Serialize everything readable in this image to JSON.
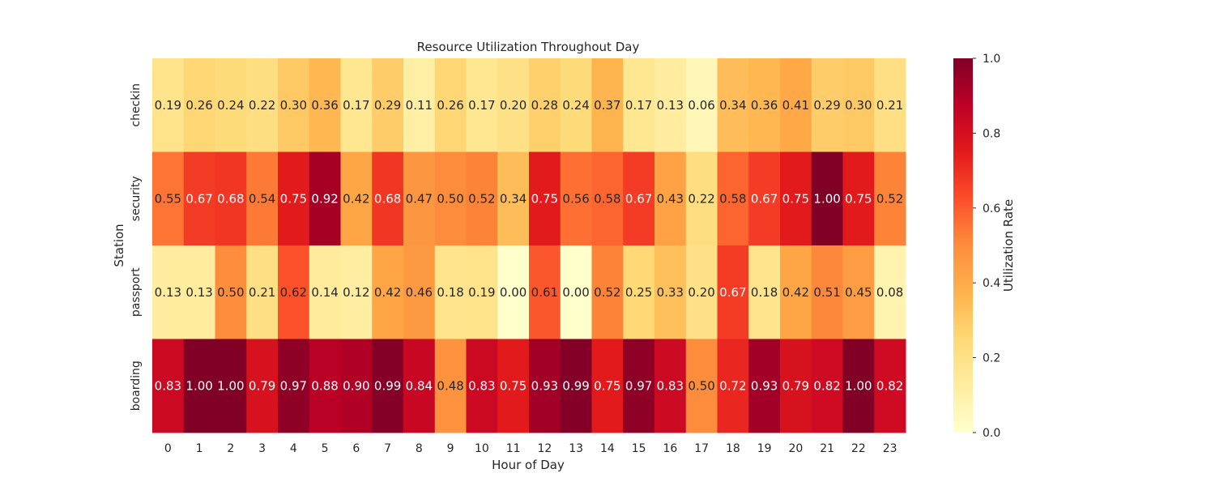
{
  "chart_data": {
    "type": "heatmap",
    "title": "Resource Utilization Throughout Day",
    "xlabel": "Hour of Day",
    "ylabel": "Station",
    "x": [
      "0",
      "1",
      "2",
      "3",
      "4",
      "5",
      "6",
      "7",
      "8",
      "9",
      "10",
      "11",
      "12",
      "13",
      "14",
      "15",
      "16",
      "17",
      "18",
      "19",
      "20",
      "21",
      "22",
      "23"
    ],
    "y": [
      "checkin",
      "security",
      "passport",
      "boarding"
    ],
    "values": [
      [
        0.19,
        0.26,
        0.24,
        0.22,
        0.3,
        0.36,
        0.17,
        0.29,
        0.11,
        0.26,
        0.17,
        0.2,
        0.28,
        0.24,
        0.37,
        0.17,
        0.13,
        0.06,
        0.34,
        0.36,
        0.41,
        0.29,
        0.3,
        0.21
      ],
      [
        0.55,
        0.67,
        0.68,
        0.54,
        0.75,
        0.92,
        0.42,
        0.68,
        0.47,
        0.5,
        0.52,
        0.34,
        0.75,
        0.56,
        0.58,
        0.67,
        0.43,
        0.22,
        0.58,
        0.67,
        0.75,
        1.0,
        0.75,
        0.52
      ],
      [
        0.13,
        0.13,
        0.5,
        0.21,
        0.62,
        0.14,
        0.12,
        0.42,
        0.46,
        0.18,
        0.19,
        0.0,
        0.61,
        0.0,
        0.52,
        0.25,
        0.33,
        0.2,
        0.67,
        0.18,
        0.42,
        0.51,
        0.45,
        0.08
      ],
      [
        0.83,
        1.0,
        1.0,
        0.79,
        0.97,
        0.88,
        0.9,
        0.99,
        0.84,
        0.48,
        0.83,
        0.75,
        0.93,
        0.99,
        0.75,
        0.97,
        0.83,
        0.5,
        0.72,
        0.93,
        0.79,
        0.82,
        1.0,
        0.82
      ]
    ],
    "colormap": "YlOrRd",
    "colorbar": {
      "label": "Utilization Rate",
      "range": [
        0,
        1
      ],
      "ticks": [
        "0.0",
        "0.2",
        "0.4",
        "0.6",
        "0.8",
        "1.0"
      ]
    },
    "annotations": "values shown in each cell, 2 decimals"
  }
}
